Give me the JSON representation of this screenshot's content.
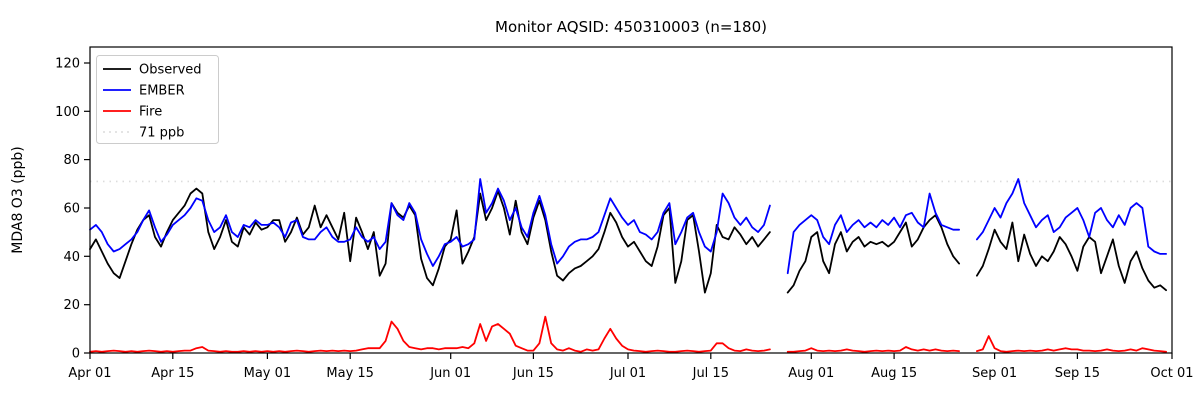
{
  "chart_data": {
    "type": "line",
    "title": "Monitor AQSID: 450310003 (n=180)",
    "xlabel": "",
    "ylabel": "MDA8 O3 (ppb)",
    "ylim": [
      0,
      126.6
    ],
    "yticks": [
      0,
      20,
      40,
      60,
      80,
      100,
      120
    ],
    "x_domain_days": 183,
    "x_start": "Apr 01",
    "x_end": "Oct 01",
    "xticks": [
      {
        "day": 0,
        "label": "Apr 01"
      },
      {
        "day": 14,
        "label": "Apr 15"
      },
      {
        "day": 30,
        "label": "May 01"
      },
      {
        "day": 44,
        "label": "May 15"
      },
      {
        "day": 61,
        "label": "Jun 01"
      },
      {
        "day": 75,
        "label": "Jun 15"
      },
      {
        "day": 91,
        "label": "Jul 01"
      },
      {
        "day": 105,
        "label": "Jul 15"
      },
      {
        "day": 122,
        "label": "Aug 01"
      },
      {
        "day": 136,
        "label": "Aug 15"
      },
      {
        "day": 153,
        "label": "Sep 01"
      },
      {
        "day": 167,
        "label": "Sep 15"
      },
      {
        "day": 183,
        "label": "Oct 01"
      }
    ],
    "grid": false,
    "legend_position": "upper left",
    "threshold": {
      "value": 71,
      "label": "71 ppb",
      "color": "#dcdcdc",
      "style": "dotted"
    },
    "series": [
      {
        "name": "Observed",
        "color": "#000000",
        "values": [
          43,
          47,
          42,
          37,
          33,
          31,
          38,
          45,
          51,
          55,
          57,
          48,
          44,
          50,
          55,
          58,
          61,
          66,
          68,
          66,
          50,
          43,
          48,
          55,
          46,
          44,
          52,
          49,
          54,
          51,
          52,
          55,
          55,
          46,
          50,
          56,
          49,
          52,
          61,
          52,
          57,
          52,
          47,
          58,
          38,
          56,
          50,
          43,
          50,
          32,
          37,
          62,
          58,
          56,
          61,
          57,
          39,
          31,
          28,
          35,
          44,
          47,
          59,
          37,
          42,
          48,
          66,
          55,
          60,
          67,
          60,
          49,
          63,
          50,
          45,
          56,
          63,
          55,
          42,
          32,
          30,
          33,
          35,
          36,
          38,
          40,
          43,
          50,
          58,
          54,
          48,
          44,
          46,
          42,
          38,
          36,
          44,
          57,
          60,
          29,
          38,
          55,
          57,
          42,
          25,
          33,
          53,
          48,
          47,
          52,
          49,
          45,
          48,
          44,
          47,
          50,
          null,
          null,
          25,
          28,
          34,
          38,
          48,
          50,
          38,
          33,
          45,
          50,
          42,
          46,
          48,
          44,
          46,
          45,
          46,
          44,
          46,
          50,
          54,
          44,
          47,
          52,
          55,
          57,
          52,
          45,
          40,
          37,
          null,
          null,
          32,
          36,
          43,
          51,
          46,
          43,
          54,
          38,
          49,
          41,
          36,
          40,
          38,
          42,
          48,
          45,
          40,
          34,
          44,
          48,
          46,
          33,
          40,
          47,
          36,
          29,
          38,
          42,
          35,
          30,
          27,
          28,
          26
        ]
      },
      {
        "name": "EMBER",
        "color": "#0000ff",
        "values": [
          51,
          53,
          50,
          45,
          42,
          43,
          45,
          47,
          50,
          55,
          59,
          52,
          46,
          49,
          53,
          55,
          57,
          60,
          64,
          63,
          55,
          50,
          52,
          57,
          50,
          48,
          53,
          52,
          55,
          53,
          53,
          54,
          52,
          48,
          54,
          55,
          48,
          47,
          47,
          50,
          52,
          48,
          46,
          46,
          47,
          52,
          48,
          46,
          48,
          43,
          46,
          62,
          57,
          55,
          62,
          58,
          47,
          41,
          36,
          40,
          45,
          46,
          48,
          44,
          45,
          47,
          72,
          58,
          62,
          68,
          63,
          55,
          60,
          52,
          48,
          58,
          65,
          57,
          45,
          37,
          40,
          44,
          46,
          47,
          47,
          48,
          50,
          57,
          64,
          60,
          56,
          53,
          55,
          50,
          49,
          47,
          50,
          58,
          62,
          45,
          50,
          56,
          58,
          50,
          44,
          42,
          50,
          66,
          62,
          56,
          53,
          56,
          52,
          50,
          53,
          61,
          null,
          null,
          33,
          50,
          53,
          55,
          57,
          55,
          48,
          45,
          53,
          57,
          50,
          53,
          55,
          52,
          54,
          52,
          55,
          53,
          56,
          52,
          57,
          58,
          54,
          52,
          66,
          58,
          53,
          52,
          51,
          51,
          null,
          null,
          47,
          50,
          55,
          60,
          56,
          62,
          66,
          72,
          62,
          57,
          52,
          55,
          57,
          50,
          52,
          56,
          58,
          60,
          55,
          48,
          58,
          60,
          55,
          52,
          57,
          53,
          60,
          62,
          60,
          44,
          42,
          41,
          41
        ]
      },
      {
        "name": "Fire",
        "color": "#ff0000",
        "values": [
          0.5,
          0.8,
          0.5,
          0.8,
          1,
          0.8,
          0.5,
          0.8,
          0.5,
          0.8,
          1,
          0.8,
          0.5,
          0.8,
          0.5,
          0.8,
          1,
          1,
          2,
          2.5,
          1,
          0.8,
          0.5,
          0.8,
          0.5,
          0.5,
          0.8,
          0.5,
          0.8,
          0.5,
          0.8,
          0.5,
          0.8,
          0.5,
          0.8,
          1,
          0.8,
          0.5,
          0.8,
          1,
          0.8,
          1,
          0.8,
          1,
          0.8,
          1,
          1.5,
          2,
          2,
          2,
          5,
          13,
          10,
          5,
          2.5,
          2,
          1.5,
          2,
          2,
          1.5,
          2,
          2,
          2,
          2.5,
          2,
          4,
          12,
          5,
          11,
          12,
          10,
          8,
          3,
          2,
          1,
          1,
          4,
          15,
          4,
          1.5,
          1,
          2,
          1,
          0.5,
          1.5,
          1,
          1.5,
          6,
          10,
          6,
          3,
          1.5,
          1,
          0.8,
          0.5,
          0.8,
          1,
          0.8,
          0.5,
          0.5,
          0.8,
          1,
          0.8,
          0.5,
          0.8,
          1,
          4,
          4,
          2,
          1,
          0.8,
          1.5,
          1,
          0.8,
          1,
          1.5,
          null,
          null,
          0.5,
          0.5,
          0.8,
          1,
          2,
          1,
          0.8,
          1,
          0.8,
          1,
          1.5,
          1,
          0.8,
          0.5,
          0.8,
          1,
          0.8,
          1,
          0.8,
          1,
          2.5,
          1.5,
          1,
          1.5,
          1,
          1.5,
          1,
          0.8,
          1,
          0.8,
          null,
          null,
          0.8,
          1.5,
          7,
          2,
          0.8,
          0.5,
          0.8,
          1,
          0.8,
          1,
          0.8,
          1,
          1.5,
          1,
          1.5,
          2,
          1.5,
          1.5,
          1,
          1,
          0.8,
          1,
          1.5,
          1,
          0.8,
          1,
          1.5,
          1,
          2,
          1.5,
          1,
          0.8,
          0.5
        ]
      }
    ]
  }
}
